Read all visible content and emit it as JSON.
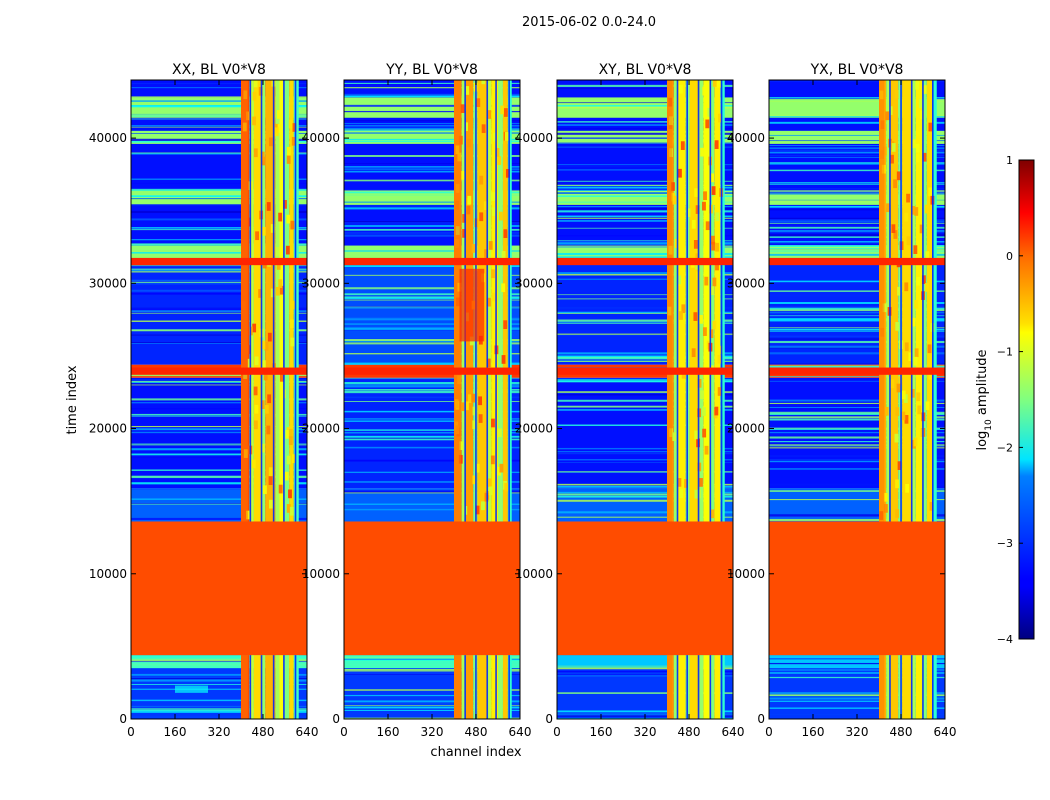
{
  "figure": {
    "suptitle": "2015-06-02 0.0-24.0",
    "xlabel": "channel index",
    "ylabel": "time index"
  },
  "colorbar": {
    "label": "log10 amplitude",
    "label_base": "log",
    "label_sub": "10",
    "label_rest": " amplitude",
    "range": [
      -4,
      1
    ],
    "ticks": [
      -4,
      -3,
      -2,
      -1,
      0,
      1
    ],
    "tick_labels": [
      "−4",
      "−3",
      "−2",
      "−1",
      "0",
      "1"
    ],
    "colormap": "jet"
  },
  "chart_data": {
    "type": "heatmap",
    "x_range": [
      0,
      640
    ],
    "y_range": [
      0,
      44000
    ],
    "x_ticks": [
      0,
      160,
      320,
      480,
      640
    ],
    "y_ticks": [
      0,
      10000,
      20000,
      30000,
      40000
    ],
    "value_units": "log10 amplitude",
    "panels": [
      {
        "title": "XX, BL V0*V8",
        "rfi_band": [
          400,
          610
        ],
        "rfi_edge": [
          400,
          425
        ],
        "band_cols": [
          {
            "start": 400,
            "end": 430,
            "value": 0.0
          },
          {
            "start": 430,
            "end": 447,
            "value": -1.2
          },
          {
            "start": 447,
            "end": 475,
            "value": -0.7
          },
          {
            "start": 475,
            "end": 488,
            "value": -1.4
          },
          {
            "start": 488,
            "end": 525,
            "value": -0.5
          },
          {
            "start": 525,
            "end": 540,
            "value": -1.3
          },
          {
            "start": 540,
            "end": 555,
            "value": -0.9
          },
          {
            "start": 555,
            "end": 575,
            "value": -1.5
          },
          {
            "start": 575,
            "end": 592,
            "value": -0.7
          },
          {
            "start": 592,
            "end": 610,
            "value": -1.8
          }
        ],
        "time_blocks": [
          {
            "t0": 0,
            "t1": 4400,
            "value": -3.1
          },
          {
            "t0": 3500,
            "t1": 4400,
            "value": -1.8
          },
          {
            "t0": 4400,
            "t1": 13600,
            "value": 0.0
          },
          {
            "t0": 13600,
            "t1": 15900,
            "value": -2.9
          },
          {
            "t0": 15900,
            "t1": 23500,
            "value": -3.3
          },
          {
            "t0": 23500,
            "t1": 24400,
            "value": 0.1
          },
          {
            "t0": 24400,
            "t1": 31300,
            "value": -3.2
          },
          {
            "t0": 31300,
            "t1": 31700,
            "value": 0.1
          },
          {
            "t0": 31700,
            "t1": 44000,
            "value": -3.3
          },
          {
            "t0": 31700,
            "t1": 32600,
            "value": -1.4
          },
          {
            "t0": 35400,
            "t1": 36400,
            "value": -1.4
          },
          {
            "t0": 39600,
            "t1": 40500,
            "value": -1.4
          },
          {
            "t0": 41400,
            "t1": 42800,
            "value": -1.4
          }
        ],
        "freq_patches": [
          {
            "c0": 160,
            "c1": 280,
            "t0": 1800,
            "t1": 2300,
            "value": -2.1
          }
        ]
      },
      {
        "title": "YY, BL V0*V8",
        "rfi_band": [
          400,
          610
        ],
        "rfi_edge": [
          400,
          425
        ],
        "band_cols": [
          {
            "start": 400,
            "end": 428,
            "value": -0.3
          },
          {
            "start": 428,
            "end": 443,
            "value": -1.3
          },
          {
            "start": 443,
            "end": 470,
            "value": -0.4
          },
          {
            "start": 470,
            "end": 485,
            "value": -1.5
          },
          {
            "start": 485,
            "end": 520,
            "value": -0.6
          },
          {
            "start": 520,
            "end": 535,
            "value": -1.2
          },
          {
            "start": 535,
            "end": 560,
            "value": -0.8
          },
          {
            "start": 560,
            "end": 578,
            "value": -1.4
          },
          {
            "start": 578,
            "end": 596,
            "value": -0.6
          },
          {
            "start": 596,
            "end": 610,
            "value": -1.9
          }
        ],
        "time_blocks": [
          {
            "t0": 0,
            "t1": 4400,
            "value": -3.1
          },
          {
            "t0": 3500,
            "t1": 4400,
            "value": -1.8
          },
          {
            "t0": 4400,
            "t1": 13600,
            "value": 0.0
          },
          {
            "t0": 13600,
            "t1": 15900,
            "value": -2.9
          },
          {
            "t0": 15900,
            "t1": 23500,
            "value": -3.2
          },
          {
            "t0": 23500,
            "t1": 24400,
            "value": 0.1
          },
          {
            "t0": 24400,
            "t1": 31300,
            "value": -3.0
          },
          {
            "t0": 31300,
            "t1": 31700,
            "value": 0.1
          },
          {
            "t0": 31700,
            "t1": 44000,
            "value": -3.3
          },
          {
            "t0": 31700,
            "t1": 32600,
            "value": -1.4
          },
          {
            "t0": 35400,
            "t1": 36400,
            "value": -1.4
          },
          {
            "t0": 39600,
            "t1": 40500,
            "value": -1.4
          },
          {
            "t0": 41400,
            "t1": 42800,
            "value": -1.4
          }
        ],
        "freq_patches": [
          {
            "c0": 420,
            "c1": 510,
            "t0": 26000,
            "t1": 31000,
            "value": 0.2
          }
        ]
      },
      {
        "title": "XY, BL V0*V8",
        "rfi_band": [
          400,
          610
        ],
        "rfi_edge": [
          400,
          420
        ],
        "band_cols": [
          {
            "start": 400,
            "end": 425,
            "value": -0.4
          },
          {
            "start": 425,
            "end": 440,
            "value": -1.4
          },
          {
            "start": 440,
            "end": 468,
            "value": -0.8
          },
          {
            "start": 468,
            "end": 482,
            "value": -1.5
          },
          {
            "start": 482,
            "end": 518,
            "value": -0.7
          },
          {
            "start": 518,
            "end": 532,
            "value": -1.4
          },
          {
            "start": 532,
            "end": 558,
            "value": -0.9
          },
          {
            "start": 558,
            "end": 572,
            "value": -1.5
          },
          {
            "start": 572,
            "end": 594,
            "value": -0.8
          },
          {
            "start": 594,
            "end": 610,
            "value": -1.9
          }
        ],
        "time_blocks": [
          {
            "t0": 0,
            "t1": 4400,
            "value": -3.1
          },
          {
            "t0": 3500,
            "t1": 4400,
            "value": -2.4
          },
          {
            "t0": 4400,
            "t1": 13600,
            "value": 0.0
          },
          {
            "t0": 13600,
            "t1": 15900,
            "value": -2.9
          },
          {
            "t0": 15900,
            "t1": 23500,
            "value": -3.3
          },
          {
            "t0": 23500,
            "t1": 24400,
            "value": 0.1
          },
          {
            "t0": 24400,
            "t1": 31300,
            "value": -3.2
          },
          {
            "t0": 31300,
            "t1": 31700,
            "value": 0.1
          },
          {
            "t0": 31700,
            "t1": 44000,
            "value": -3.3
          },
          {
            "t0": 31700,
            "t1": 32600,
            "value": -1.4
          },
          {
            "t0": 35400,
            "t1": 36400,
            "value": -1.4
          },
          {
            "t0": 39600,
            "t1": 40500,
            "value": -1.4
          },
          {
            "t0": 41400,
            "t1": 42800,
            "value": -1.4
          }
        ],
        "freq_patches": []
      },
      {
        "title": "YX, BL V0*V8",
        "rfi_band": [
          400,
          610
        ],
        "rfi_edge": [
          400,
          420
        ],
        "band_cols": [
          {
            "start": 400,
            "end": 426,
            "value": -0.5
          },
          {
            "start": 426,
            "end": 442,
            "value": -1.3
          },
          {
            "start": 442,
            "end": 470,
            "value": -0.6
          },
          {
            "start": 470,
            "end": 484,
            "value": -1.5
          },
          {
            "start": 484,
            "end": 520,
            "value": -0.7
          },
          {
            "start": 520,
            "end": 534,
            "value": -1.3
          },
          {
            "start": 534,
            "end": 558,
            "value": -0.8
          },
          {
            "start": 558,
            "end": 574,
            "value": -1.5
          },
          {
            "start": 574,
            "end": 594,
            "value": -0.7
          },
          {
            "start": 594,
            "end": 610,
            "value": -1.9
          }
        ],
        "time_blocks": [
          {
            "t0": 0,
            "t1": 4400,
            "value": -3.1
          },
          {
            "t0": 3500,
            "t1": 4400,
            "value": -2.4
          },
          {
            "t0": 4400,
            "t1": 13600,
            "value": 0.0
          },
          {
            "t0": 13600,
            "t1": 15900,
            "value": -2.9
          },
          {
            "t0": 15900,
            "t1": 23500,
            "value": -3.3
          },
          {
            "t0": 23500,
            "t1": 24400,
            "value": 0.1
          },
          {
            "t0": 24400,
            "t1": 31300,
            "value": -3.2
          },
          {
            "t0": 31300,
            "t1": 31700,
            "value": 0.1
          },
          {
            "t0": 31700,
            "t1": 44000,
            "value": -3.3
          },
          {
            "t0": 31700,
            "t1": 32600,
            "value": -1.4
          },
          {
            "t0": 35400,
            "t1": 36400,
            "value": -1.4
          },
          {
            "t0": 39600,
            "t1": 40500,
            "value": -1.4
          },
          {
            "t0": 41400,
            "t1": 42800,
            "value": -1.4
          }
        ],
        "freq_patches": []
      }
    ]
  }
}
